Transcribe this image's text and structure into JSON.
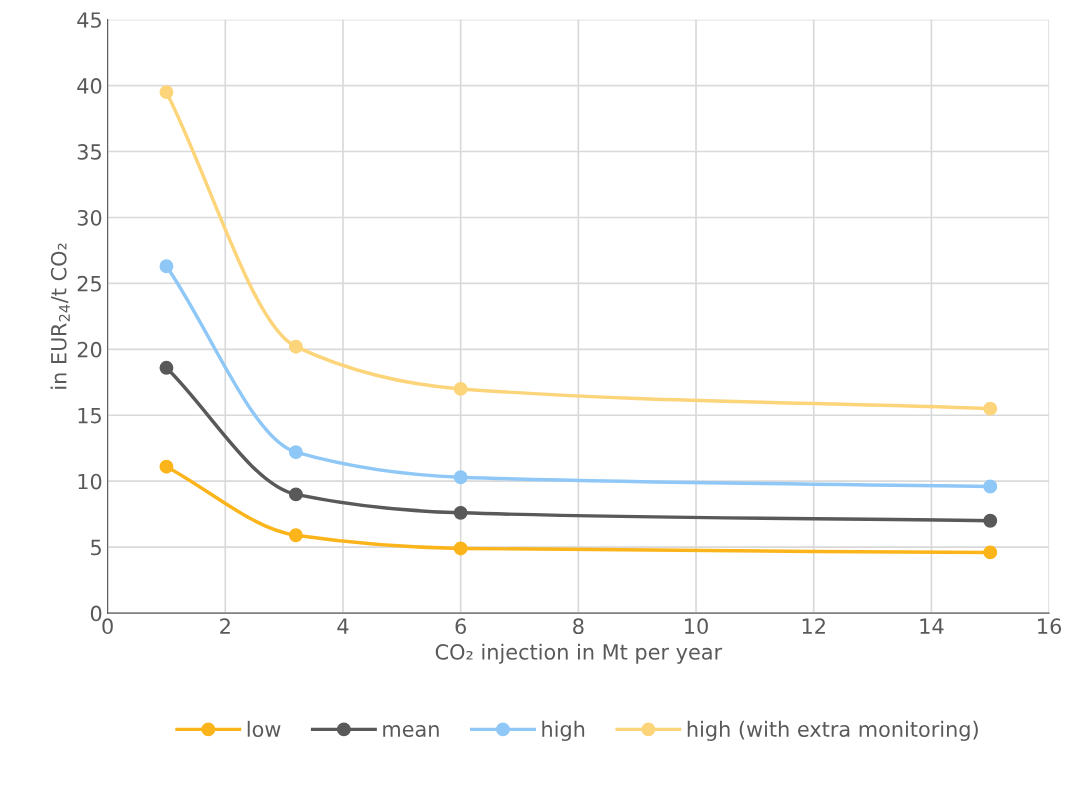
{
  "chart_data": {
    "type": "line",
    "xlabel": "CO₂ injection in Mt per year",
    "ylabel": "in EUR$_{24}$/t CO₂",
    "x": [
      1,
      3.2,
      6,
      15
    ],
    "series": [
      {
        "name": "low",
        "color": "#fbb41a",
        "values": [
          11.1,
          5.9,
          4.9,
          4.6
        ]
      },
      {
        "name": "mean",
        "color": "#595959",
        "values": [
          18.6,
          9.0,
          7.6,
          7.0
        ]
      },
      {
        "name": "high",
        "color": "#8fc8f7",
        "values": [
          26.3,
          12.2,
          10.3,
          9.6
        ]
      },
      {
        "name": "high (with extra monitoring)",
        "color": "#fcd47a",
        "values": [
          39.5,
          20.2,
          17.0,
          15.5
        ]
      }
    ],
    "xlim": [
      0,
      16
    ],
    "xticks": [
      0,
      2,
      4,
      6,
      8,
      10,
      12,
      14,
      16
    ],
    "ylim": [
      0,
      45
    ],
    "yticks": [
      0,
      5,
      10,
      15,
      20,
      25,
      30,
      35,
      40,
      45
    ],
    "grid": true,
    "legend": "bottom",
    "marker": "circle",
    "line_style": "solid"
  }
}
